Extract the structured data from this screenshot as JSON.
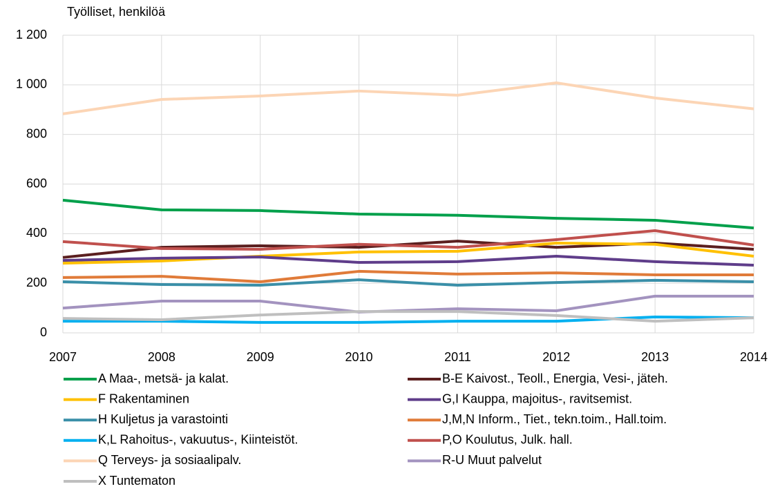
{
  "chart_data": {
    "type": "line",
    "ylabel": "Työlliset, henkilöä",
    "x": [
      2007,
      2008,
      2009,
      2010,
      2011,
      2012,
      2013,
      2014
    ],
    "xlim": [
      2007,
      2014
    ],
    "xticks": [
      2007,
      2008,
      2009,
      2010,
      2011,
      2012,
      2013,
      2014
    ],
    "ylim": [
      0,
      1200
    ],
    "yticks": [
      0,
      200,
      400,
      600,
      800,
      {
        "value": 1000,
        "label": "1 000"
      },
      {
        "value": 1200,
        "label": "1 200"
      }
    ],
    "grid": true,
    "legend": "bottom",
    "series": [
      {
        "name": "A Maa-, metsä- ja kalat.",
        "color": "#00a04b",
        "values": [
          535,
          496,
          493,
          479,
          474,
          462,
          454,
          423
        ]
      },
      {
        "name": "B-E Kaivost., Teoll., Energia, Vesi-, jäteh.",
        "color": "#5b1f1f",
        "values": [
          304,
          345,
          351,
          345,
          370,
          345,
          362,
          337
        ]
      },
      {
        "name": "F Rakentaminen",
        "color": "#ffc000",
        "values": [
          281,
          290,
          309,
          326,
          329,
          362,
          357,
          309
        ]
      },
      {
        "name": "G,I Kauppa, majoitus-, ravitsemist.",
        "color": "#5f3d8a",
        "values": [
          292,
          301,
          306,
          284,
          287,
          309,
          287,
          273
        ]
      },
      {
        "name": "H Kuljetus ja varastointi",
        "color": "#3a8fa8",
        "values": [
          206,
          195,
          192,
          214,
          192,
          203,
          212,
          206
        ]
      },
      {
        "name": "J,M,N Inform., Tiet., tekn.toim., Hall.toim.",
        "color": "#e07b39",
        "values": [
          223,
          228,
          206,
          248,
          237,
          242,
          234,
          234
        ]
      },
      {
        "name": "K,L Rahoitus-, vakuutus-, Kiinteistöt.",
        "color": "#00b0f0",
        "values": [
          47,
          47,
          42,
          42,
          47,
          47,
          64,
          61
        ]
      },
      {
        "name": "P,O Koulutus, Julk. hall.",
        "color": "#c0504d",
        "values": [
          368,
          340,
          337,
          357,
          345,
          376,
          412,
          354
        ]
      },
      {
        "name": "Q Terveys- ja sosiaalipalv.",
        "color": "#fcd5b5",
        "values": [
          883,
          941,
          955,
          975,
          958,
          1008,
          947,
          903
        ]
      },
      {
        "name": "R-U Muut palvelut",
        "color": "#a393bf",
        "values": [
          100,
          128,
          128,
          84,
          97,
          89,
          148,
          148
        ]
      },
      {
        "name": "X Tuntematon",
        "color": "#bfbfbf",
        "values": [
          58,
          53,
          72,
          86,
          86,
          70,
          47,
          61
        ]
      }
    ]
  }
}
